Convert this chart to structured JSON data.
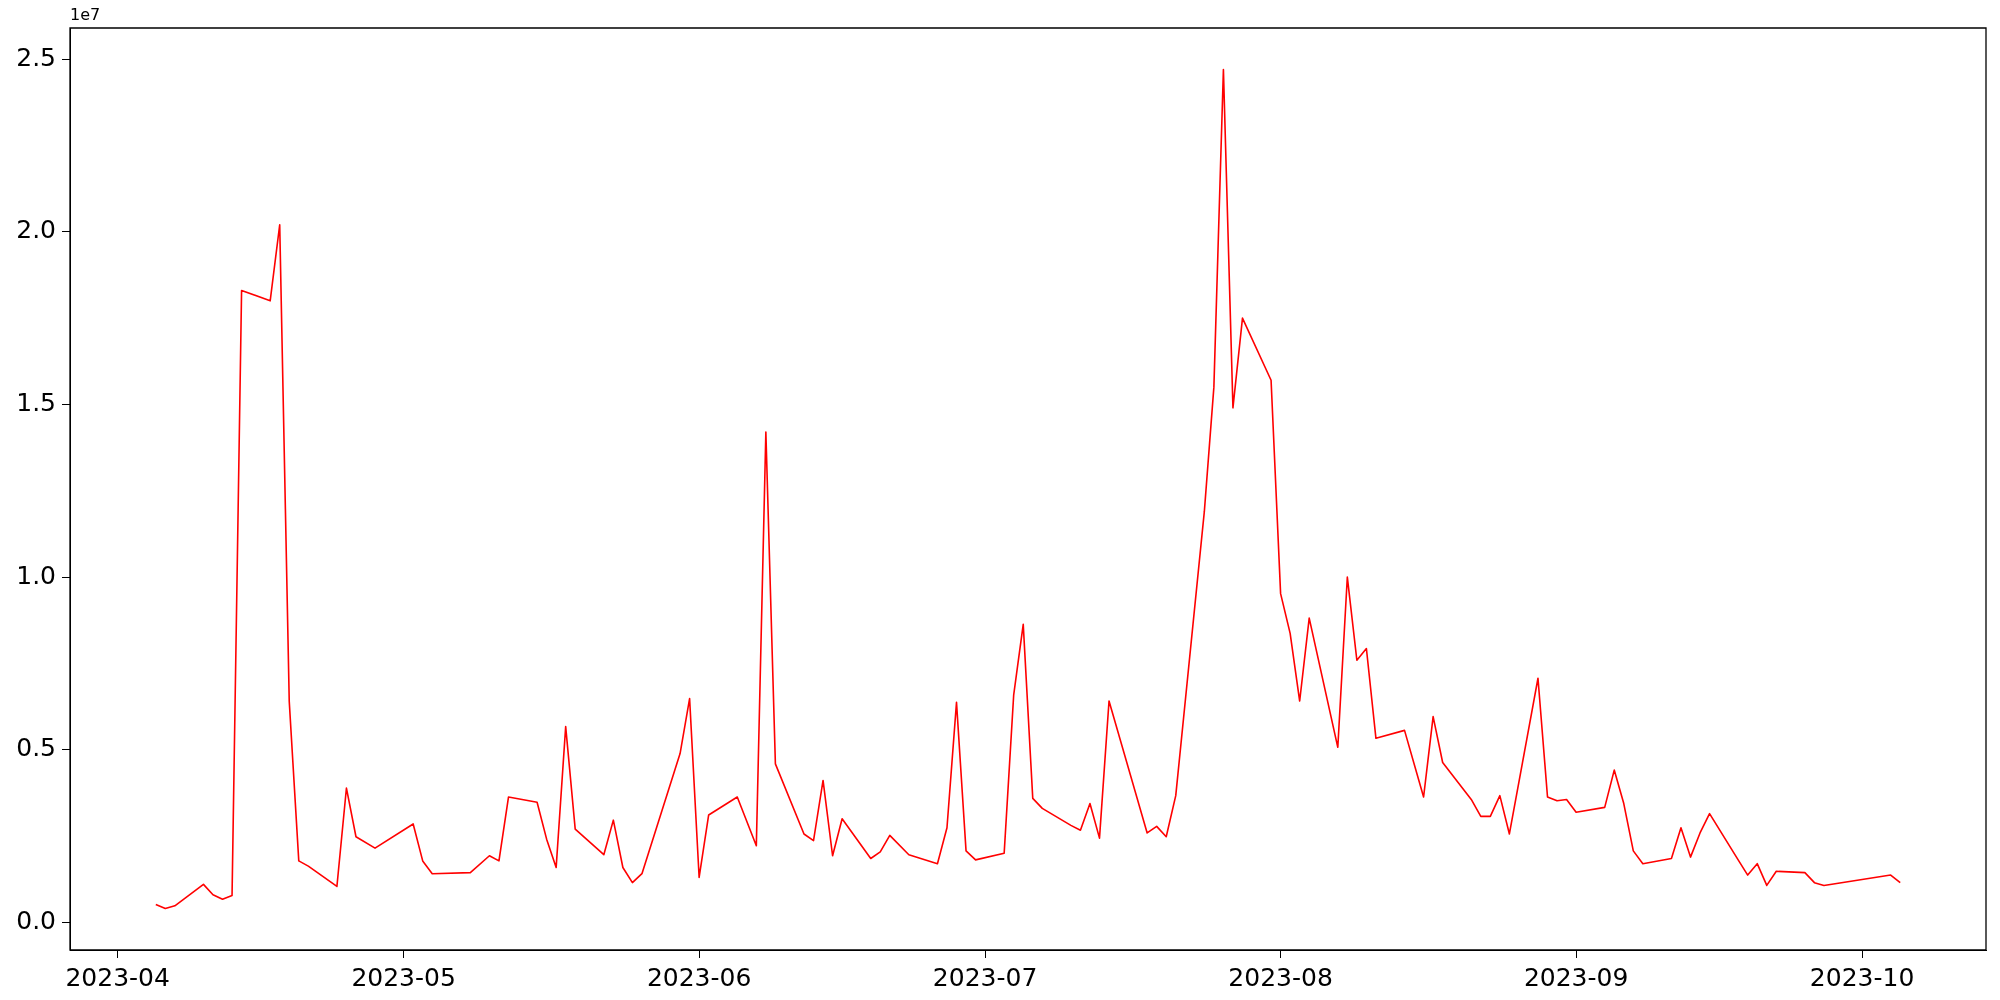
{
  "chart_data": {
    "type": "line",
    "annotations": [
      "1e7"
    ],
    "x": [
      "2023-04-05",
      "2023-04-06",
      "2023-04-07",
      "2023-04-10",
      "2023-04-11",
      "2023-04-12",
      "2023-04-13",
      "2023-04-14",
      "2023-04-17",
      "2023-04-18",
      "2023-04-19",
      "2023-04-20",
      "2023-04-21",
      "2023-04-24",
      "2023-04-25",
      "2023-04-26",
      "2023-04-28",
      "2023-05-02",
      "2023-05-03",
      "2023-05-04",
      "2023-05-08",
      "2023-05-10",
      "2023-05-11",
      "2023-05-12",
      "2023-05-15",
      "2023-05-16",
      "2023-05-17",
      "2023-05-18",
      "2023-05-19",
      "2023-05-22",
      "2023-05-23",
      "2023-05-24",
      "2023-05-25",
      "2023-05-26",
      "2023-05-30",
      "2023-05-31",
      "2023-06-01",
      "2023-06-02",
      "2023-06-05",
      "2023-06-07",
      "2023-06-08",
      "2023-06-09",
      "2023-06-12",
      "2023-06-13",
      "2023-06-14",
      "2023-06-15",
      "2023-06-16",
      "2023-06-19",
      "2023-06-20",
      "2023-06-21",
      "2023-06-23",
      "2023-06-26",
      "2023-06-27",
      "2023-06-28",
      "2023-06-29",
      "2023-06-30",
      "2023-07-03",
      "2023-07-04",
      "2023-07-05",
      "2023-07-06",
      "2023-07-07",
      "2023-07-10",
      "2023-07-11",
      "2023-07-12",
      "2023-07-13",
      "2023-07-14",
      "2023-07-18",
      "2023-07-19",
      "2023-07-20",
      "2023-07-21",
      "2023-07-24",
      "2023-07-25",
      "2023-07-26",
      "2023-07-27",
      "2023-07-28",
      "2023-07-31",
      "2023-08-01",
      "2023-08-02",
      "2023-08-03",
      "2023-08-04",
      "2023-08-07",
      "2023-08-08",
      "2023-08-09",
      "2023-08-10",
      "2023-08-11",
      "2023-08-14",
      "2023-08-16",
      "2023-08-17",
      "2023-08-18",
      "2023-08-21",
      "2023-08-22",
      "2023-08-23",
      "2023-08-24",
      "2023-08-25",
      "2023-08-28",
      "2023-08-29",
      "2023-08-30",
      "2023-08-31",
      "2023-09-01",
      "2023-09-04",
      "2023-09-05",
      "2023-09-06",
      "2023-09-07",
      "2023-09-08",
      "2023-09-11",
      "2023-09-12",
      "2023-09-13",
      "2023-09-14",
      "2023-09-15",
      "2023-09-18",
      "2023-09-19",
      "2023-09-20",
      "2023-09-21",
      "2023-09-22",
      "2023-09-25",
      "2023-09-26",
      "2023-09-27",
      "2023-10-04",
      "2023-10-05"
    ],
    "series": [
      {
        "color": "#ff0000",
        "values": [
          0.052,
          0.04,
          0.048,
          0.11,
          0.08,
          0.067,
          0.078,
          1.83,
          1.8,
          2.02,
          0.64,
          0.178,
          0.163,
          0.104,
          0.389,
          0.248,
          0.215,
          0.285,
          0.178,
          0.141,
          0.144,
          0.193,
          0.178,
          0.363,
          0.348,
          0.241,
          0.159,
          0.567,
          0.27,
          0.196,
          0.296,
          0.159,
          0.115,
          0.141,
          0.489,
          0.648,
          0.13,
          0.311,
          0.363,
          0.222,
          1.42,
          0.459,
          0.256,
          0.237,
          0.411,
          0.193,
          0.3,
          0.185,
          0.204,
          0.252,
          0.196,
          0.17,
          0.274,
          0.637,
          0.207,
          0.181,
          0.2,
          0.659,
          0.863,
          0.359,
          0.33,
          0.281,
          0.267,
          0.344,
          0.244,
          0.641,
          0.259,
          0.278,
          0.248,
          0.367,
          1.19,
          1.55,
          2.47,
          1.49,
          1.75,
          1.57,
          0.952,
          0.837,
          0.641,
          0.881,
          0.507,
          1.0,
          0.759,
          0.793,
          0.533,
          0.556,
          0.363,
          0.596,
          0.463,
          0.356,
          0.307,
          0.307,
          0.367,
          0.256,
          0.707,
          0.363,
          0.352,
          0.356,
          0.319,
          0.333,
          0.441,
          0.344,
          0.207,
          0.17,
          0.185,
          0.274,
          0.189,
          0.259,
          0.315,
          0.181,
          0.137,
          0.17,
          0.107,
          0.148,
          0.144,
          0.115,
          0.107,
          0.137,
          0.115
        ]
      }
    ],
    "xlim": [
      "2023-03-27",
      "2023-10-14"
    ],
    "xticks": [
      "2023-04",
      "2023-05",
      "2023-06",
      "2023-07",
      "2023-08",
      "2023-09",
      "2023-10"
    ],
    "ylim": [
      -0.08,
      2.59
    ],
    "yticks": [
      {
        "value": 0,
        "label": "0.0"
      },
      0.5,
      {
        "value": 1,
        "label": "1.0"
      },
      1.5,
      {
        "value": 2,
        "label": "2.0"
      },
      2.5
    ],
    "grid": false,
    "legend": false
  }
}
